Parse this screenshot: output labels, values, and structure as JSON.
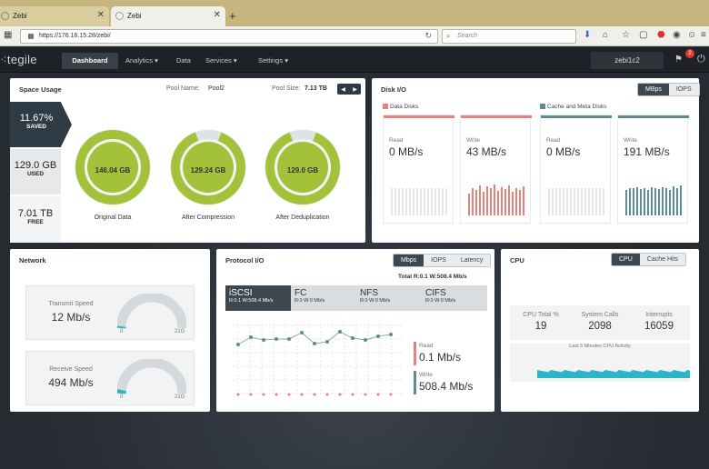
{
  "browser": {
    "tabs": [
      {
        "label": "Zebi"
      },
      {
        "label": "Zebi"
      }
    ],
    "url": "https://176.16.15.28/zebi/",
    "search_placeholder": "Search",
    "notification_count": "2"
  },
  "app": {
    "logo": "tegile",
    "nav": [
      "Dashboard",
      "Analytics",
      "Data",
      "Services",
      "Settings"
    ],
    "user": "zebi1c2"
  },
  "space_usage": {
    "title": "Space Usage",
    "pool_name_label": "Pool Name:",
    "pool_name": "Pool2",
    "pool_size_label": "Pool Size:",
    "pool_size": "7.13 TB",
    "saved": {
      "value": "11.67%",
      "label": "SAVED"
    },
    "used": {
      "value": "129.0 GB",
      "label": "USED"
    },
    "free": {
      "value": "7.01 TB",
      "label": "FREE"
    },
    "donuts": [
      {
        "value": "146.04 GB",
        "label": "Original Data",
        "fill": 1.0
      },
      {
        "value": "129.24 GB",
        "label": "After Compression",
        "fill": 0.885
      },
      {
        "value": "129.0 GB",
        "label": "After Deduplication",
        "fill": 0.883
      }
    ]
  },
  "disk_io": {
    "title": "Disk I/O",
    "toggle": [
      "MBps",
      "IOPS"
    ],
    "groups": [
      "Data Disks",
      "Cache and Meta Disks"
    ],
    "cards": [
      {
        "label": "Read",
        "value": "0 MB/s"
      },
      {
        "label": "Write",
        "value": "43 MB/s"
      },
      {
        "label": "Read",
        "value": "0 MB/s"
      },
      {
        "label": "Write",
        "value": "191 MB/s"
      }
    ]
  },
  "network": {
    "title": "Network",
    "transmit": {
      "label": "Transmit Speed",
      "value": "12 Mb/s",
      "min": "0",
      "max": "21G"
    },
    "receive": {
      "label": "Receive Speed",
      "value": "494 Mb/s",
      "min": "0",
      "max": "21G"
    }
  },
  "protocol_io": {
    "title": "Protocol I/O",
    "toggle": [
      "Mbps",
      "IOPS",
      "Latency"
    ],
    "total": "Total R:0.1 W:508.4 Mb/s",
    "protocols": [
      {
        "name": "iSCSI",
        "stats": "R:0.1 W:508.4 Mb/s"
      },
      {
        "name": "FC",
        "stats": "R:0 W:0 Mb/s"
      },
      {
        "name": "NFS",
        "stats": "R:0 W:0 Mb/s"
      },
      {
        "name": "CIFS",
        "stats": "R:0 W:0 Mb/s"
      }
    ],
    "read": {
      "label": "Read",
      "value": "0.1 Mb/s"
    },
    "write": {
      "label": "Write",
      "value": "508.4 Mb/s"
    }
  },
  "cpu": {
    "title": "CPU",
    "toggle": [
      "CPU",
      "Cache Hits"
    ],
    "stats": [
      {
        "label": "CPU Total %",
        "value": "19"
      },
      {
        "label": "System Calls",
        "value": "2098"
      },
      {
        "label": "Interrupts",
        "value": "16059"
      }
    ],
    "chart_caption": "Last 5 Minutes CPU Activity"
  },
  "colors": {
    "accent_green": "#a3c23a",
    "read_red": "#e8807b",
    "write_teal": "#5b8d93",
    "cpu_cyan": "#2bb6c8"
  }
}
